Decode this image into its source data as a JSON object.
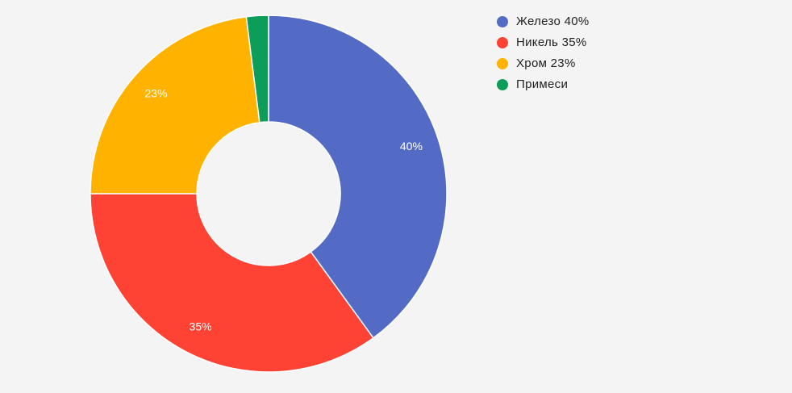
{
  "chart_data": {
    "type": "pie",
    "donut": true,
    "slices": [
      {
        "name": "Железо 40%",
        "value": 40,
        "label": "40%",
        "color": "#546bc5"
      },
      {
        "name": "Никель 35%",
        "value": 35,
        "label": "35%",
        "color": "#fe4234"
      },
      {
        "name": "Хром 23%",
        "value": 23,
        "label": "23%",
        "color": "#ffb300"
      },
      {
        "name": "Примеси",
        "value": 2,
        "label": "",
        "color": "#0c9d58"
      }
    ],
    "legend_position": "top-right",
    "start_angle": "top",
    "direction": "clockwise"
  }
}
